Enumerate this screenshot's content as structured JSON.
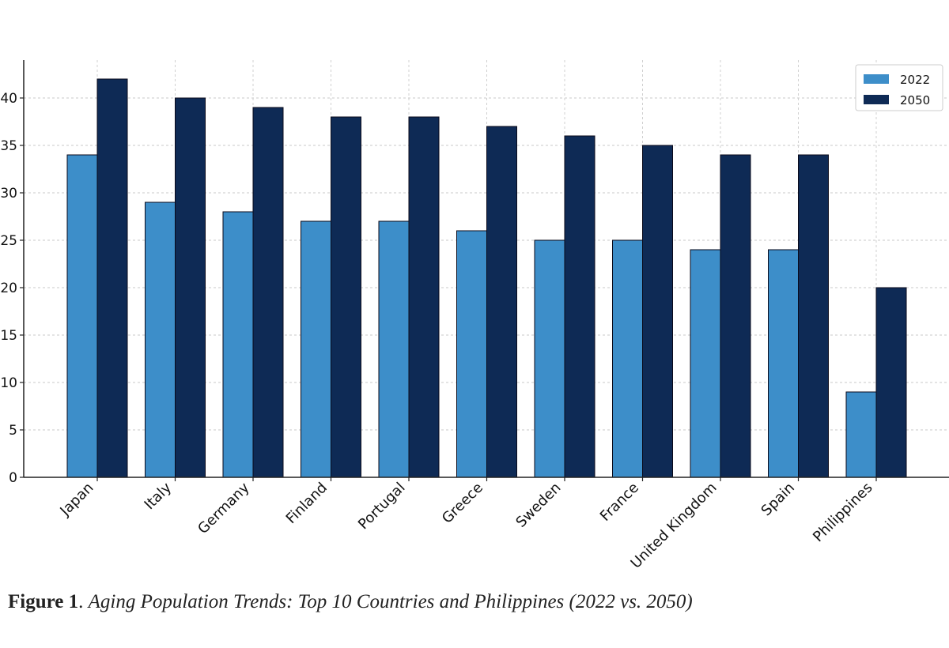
{
  "chart_data": {
    "type": "bar",
    "categories": [
      "Japan",
      "Italy",
      "Germany",
      "Finland",
      "Portugal",
      "Greece",
      "Sweden",
      "France",
      "United Kingdom",
      "Spain",
      "Philippines"
    ],
    "series": [
      {
        "name": "2022",
        "values": [
          34,
          29,
          28,
          27,
          27,
          26,
          25,
          25,
          24,
          24,
          9
        ],
        "color": "#3d8ec9"
      },
      {
        "name": "2050",
        "values": [
          42,
          40,
          39,
          38,
          38,
          37,
          36,
          35,
          34,
          34,
          20
        ],
        "color": "#0e2a55"
      }
    ],
    "yticks": [
      0,
      5,
      10,
      15,
      20,
      25,
      30,
      35,
      40
    ],
    "ylim": [
      0,
      44
    ],
    "grid": true,
    "legend_position": "top-right",
    "xlabel": "",
    "ylabel": ""
  },
  "caption": {
    "label": "Figure 1",
    "separator": ". ",
    "text": "Aging Population Trends: Top 10 Countries and Philippines (2022 vs.  2050)"
  }
}
